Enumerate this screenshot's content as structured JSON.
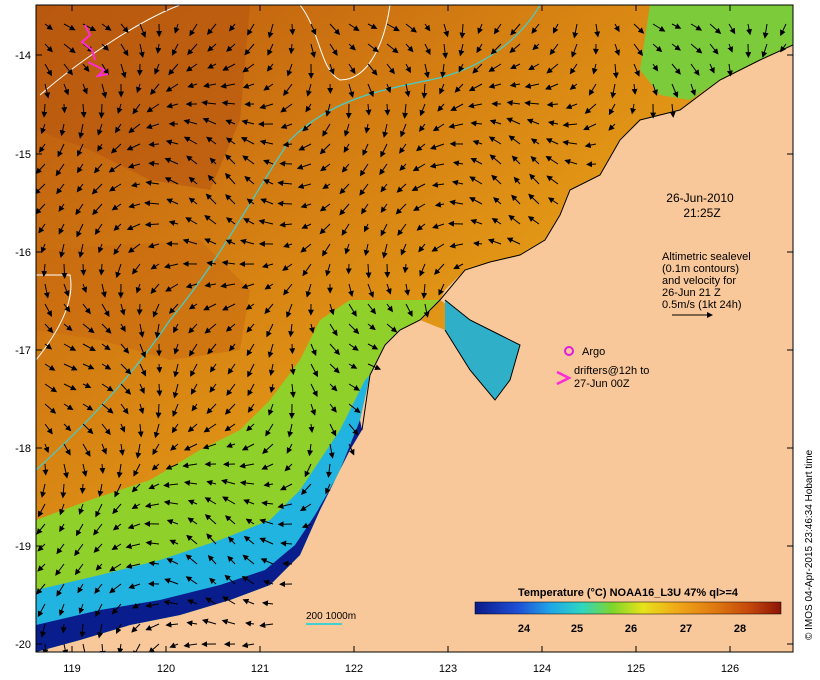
{
  "map": {
    "title_date": "26-Jun-2010",
    "title_time": "21:25Z",
    "legend_sealevel": [
      "Altimetric sealevel",
      "(0.1m contours)",
      "and velocity for",
      "26-Jun 21 Z",
      "0.5m/s (1kt 24h)"
    ],
    "legend_argo": "Argo",
    "legend_drifters": [
      "drifters@12h to",
      "27-Jun 00Z"
    ],
    "depth_legend": "200  1000m",
    "colorbar_title": "Temperature (°C) NOAA16_L3U 47% ql>=4",
    "colorbar_ticks": [
      "24",
      "25",
      "26",
      "27",
      "28"
    ],
    "lon_ticks": [
      "119",
      "120",
      "121",
      "122",
      "123",
      "124",
      "125",
      "126"
    ],
    "lat_ticks": [
      "-14",
      "-15",
      "-16",
      "-17",
      "-18",
      "-19",
      "-20"
    ],
    "credit": "© IMOS 04-Apr-2015 23:46:34 Hobart time",
    "colors": {
      "land": "#f8c79a",
      "warm": "#cc6a0c",
      "mid": "#e79b18",
      "cool_green": "#79c92a",
      "cyan": "#2fb5e6",
      "deep_blue": "#0a1d8c",
      "contour_200m": "#41cfcf",
      "argo": "#e01ce0",
      "drifter": "#ff2bd6"
    }
  }
}
